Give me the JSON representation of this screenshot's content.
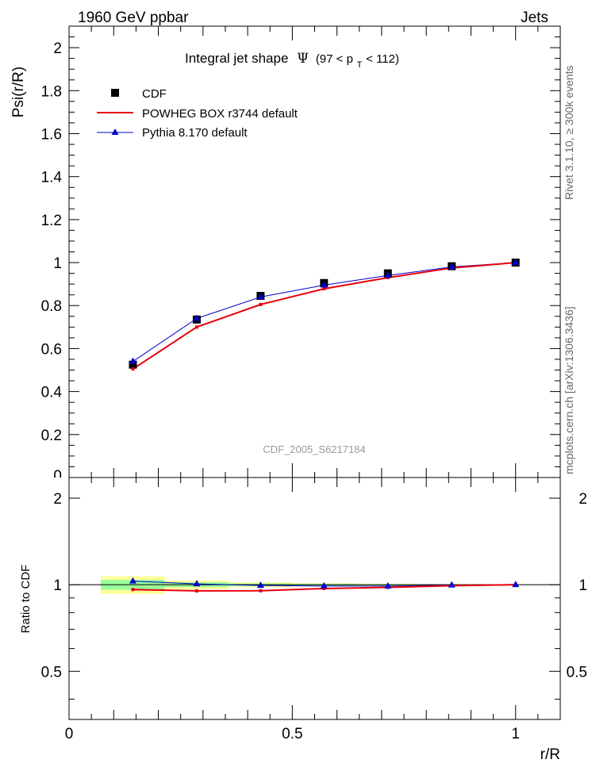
{
  "header": {
    "left": "1960 GeV ppbar",
    "right": "Jets"
  },
  "side_text": {
    "rivet": "Rivet 3.1.10, ≥ 300k events",
    "mcplots": "mcplots.cern.ch [arXiv:1306.3436]"
  },
  "watermark": "CDF_2005_S6217184",
  "colors": {
    "cdf": "#000000",
    "powheg": "#e8000b",
    "pythia": "#0000cc",
    "band_inner": "#99ff99",
    "band_outer": "#ffff99"
  },
  "chart_data": [
    {
      "type": "line",
      "title": "Integral jet shape",
      "title_symbol": "Ψ",
      "title_range": "(97 < p",
      "title_range_sub": "T",
      "title_range_end": " < 112)",
      "ylabel": "Psi(r/R)",
      "xlim": [
        0,
        1.1
      ],
      "ylim": [
        0,
        2.1
      ],
      "yticks": [
        0.2,
        0.4,
        0.6,
        0.8,
        1,
        1.2,
        1.4,
        1.6,
        1.8,
        2
      ],
      "ytick_labels": [
        "0.2",
        "0.4",
        "0.6",
        "0.8",
        "1",
        "1.2",
        "1.4",
        "1.6",
        "1.8",
        "2"
      ],
      "legend_position": "top-left",
      "x": [
        0.143,
        0.286,
        0.429,
        0.571,
        0.714,
        0.857,
        1.0
      ],
      "series": [
        {
          "name": "CDF",
          "marker": "square",
          "values": [
            0.525,
            0.735,
            0.845,
            0.905,
            0.95,
            0.983,
            1.0
          ]
        },
        {
          "name": "POWHEG BOX r3744 default",
          "marker": "none",
          "values": [
            0.505,
            0.7,
            0.805,
            0.878,
            0.93,
            0.975,
            1.0
          ]
        },
        {
          "name": "Pythia 8.170 default",
          "marker": "triangle",
          "values": [
            0.54,
            0.74,
            0.84,
            0.895,
            0.94,
            0.98,
            1.0
          ]
        }
      ]
    },
    {
      "type": "line",
      "ylabel": "Ratio to CDF",
      "xlabel": "r/R",
      "xlim": [
        0,
        1.1
      ],
      "ylim": [
        0.34,
        2.36
      ],
      "yticks": [
        0.5,
        1,
        2
      ],
      "ytick_labels": [
        "0.5",
        "1",
        "2"
      ],
      "xticks": [
        0,
        0.5,
        1
      ],
      "xtick_labels": [
        "0",
        "0.5",
        "1"
      ],
      "x": [
        0.143,
        0.286,
        0.429,
        0.571,
        0.714,
        0.857,
        1.0
      ],
      "bins": [
        [
          0.071,
          0.214
        ],
        [
          0.214,
          0.357
        ],
        [
          0.357,
          0.5
        ],
        [
          0.5,
          0.643
        ],
        [
          0.643,
          0.786
        ],
        [
          0.786,
          0.929
        ],
        [
          0.929,
          1.071
        ]
      ],
      "band_inner": [
        0.04,
        0.02,
        0.01,
        0.008,
        0.005,
        0.003,
        0.001
      ],
      "band_outer": [
        0.07,
        0.035,
        0.02,
        0.012,
        0.008,
        0.005,
        0.002
      ],
      "series": [
        {
          "name": "POWHEG BOX r3744 default",
          "values": [
            0.962,
            0.952,
            0.953,
            0.97,
            0.979,
            0.992,
            1.0
          ]
        },
        {
          "name": "Pythia 8.170 default",
          "values": [
            1.029,
            1.007,
            0.994,
            0.989,
            0.989,
            0.997,
            1.0
          ]
        }
      ]
    }
  ]
}
